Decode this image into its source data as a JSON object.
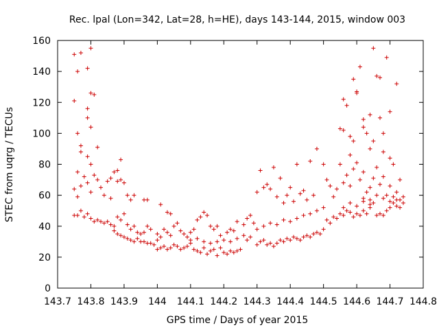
{
  "chart_data": {
    "type": "scatter",
    "title": "Rec. lpal (Lon=342, Lat=28, h=HE), days 143-144, 2015, window 003",
    "xlabel": "GPS time / Days of year 2015",
    "ylabel": "STEC from uqrg / TECUs",
    "xlim": [
      143.7,
      144.8
    ],
    "ylim": [
      0,
      160
    ],
    "x_ticks": [
      143.7,
      143.8,
      143.9,
      144.0,
      144.1,
      144.2,
      144.3,
      144.4,
      144.5,
      144.6,
      144.7,
      144.8
    ],
    "x_tick_labels": [
      "143.7",
      "143.8",
      "143.9",
      "144",
      "144.1",
      "144.2",
      "144.3",
      "144.4",
      "144.5",
      "144.6",
      "144.7",
      "144.8"
    ],
    "y_ticks": [
      0,
      20,
      40,
      60,
      80,
      100,
      120,
      140,
      160
    ],
    "y_tick_labels": [
      "0",
      "20",
      "40",
      "60",
      "80",
      "100",
      "120",
      "140",
      "160"
    ],
    "grid": false,
    "marker": "+",
    "colors": {
      "series": "#cc0000",
      "axis": "#000000",
      "background": "#ffffff"
    },
    "series": [
      {
        "points": [
          [
            143.75,
            151
          ],
          [
            143.75,
            121
          ],
          [
            143.76,
            140
          ],
          [
            143.77,
            152
          ],
          [
            143.79,
            142
          ],
          [
            143.8,
            155
          ],
          [
            143.8,
            126
          ],
          [
            143.81,
            125
          ],
          [
            143.79,
            116
          ],
          [
            143.79,
            110
          ],
          [
            143.8,
            104
          ],
          [
            143.76,
            100
          ],
          [
            143.77,
            92
          ],
          [
            143.77,
            88
          ],
          [
            143.79,
            85
          ],
          [
            143.8,
            80
          ],
          [
            143.82,
            91
          ],
          [
            143.89,
            83
          ],
          [
            143.75,
            64
          ],
          [
            143.76,
            59
          ],
          [
            143.76,
            75
          ],
          [
            143.77,
            66
          ],
          [
            143.78,
            72
          ],
          [
            143.79,
            68
          ],
          [
            143.8,
            62
          ],
          [
            143.81,
            73
          ],
          [
            143.82,
            70
          ],
          [
            143.83,
            65
          ],
          [
            143.84,
            60
          ],
          [
            143.85,
            69
          ],
          [
            143.86,
            58
          ],
          [
            143.87,
            75
          ],
          [
            143.88,
            76
          ],
          [
            143.86,
            71
          ],
          [
            143.88,
            69
          ],
          [
            143.89,
            70
          ],
          [
            143.9,
            68
          ],
          [
            143.91,
            60
          ],
          [
            143.92,
            57
          ],
          [
            143.93,
            60
          ],
          [
            143.75,
            47
          ],
          [
            143.76,
            47
          ],
          [
            143.77,
            50
          ],
          [
            143.78,
            46
          ],
          [
            143.79,
            48
          ],
          [
            143.8,
            45
          ],
          [
            143.81,
            43
          ],
          [
            143.82,
            44
          ],
          [
            143.83,
            43
          ],
          [
            143.84,
            42
          ],
          [
            143.85,
            43
          ],
          [
            143.86,
            41
          ],
          [
            143.87,
            40
          ],
          [
            143.88,
            46
          ],
          [
            143.89,
            44
          ],
          [
            143.9,
            48
          ],
          [
            143.91,
            41
          ],
          [
            143.92,
            38
          ],
          [
            143.93,
            40
          ],
          [
            143.94,
            36
          ],
          [
            143.95,
            35
          ],
          [
            143.96,
            36
          ],
          [
            143.97,
            40
          ],
          [
            143.98,
            38
          ],
          [
            143.96,
            57
          ],
          [
            143.97,
            57
          ],
          [
            143.87,
            37
          ],
          [
            143.88,
            35
          ],
          [
            143.89,
            34
          ],
          [
            143.9,
            33
          ],
          [
            143.91,
            32
          ],
          [
            143.92,
            31
          ],
          [
            143.93,
            30
          ],
          [
            143.94,
            32
          ],
          [
            143.95,
            30
          ],
          [
            143.96,
            30
          ],
          [
            143.97,
            29
          ],
          [
            143.98,
            29
          ],
          [
            143.99,
            28
          ],
          [
            144.0,
            31
          ],
          [
            144.01,
            54
          ],
          [
            144.03,
            49
          ],
          [
            144.04,
            48
          ],
          [
            144.0,
            35
          ],
          [
            144.01,
            33
          ],
          [
            144.02,
            38
          ],
          [
            144.03,
            36
          ],
          [
            144.04,
            34
          ],
          [
            144.05,
            40
          ],
          [
            144.06,
            42
          ],
          [
            144.07,
            37
          ],
          [
            144.08,
            35
          ],
          [
            144.09,
            33
          ],
          [
            144.1,
            36
          ],
          [
            144.11,
            38
          ],
          [
            144.12,
            44
          ],
          [
            144.13,
            46
          ],
          [
            144.14,
            49
          ],
          [
            144.15,
            47
          ],
          [
            144.16,
            40
          ],
          [
            144.17,
            38
          ],
          [
            144.0,
            25
          ],
          [
            144.01,
            26
          ],
          [
            144.02,
            27
          ],
          [
            144.03,
            25
          ],
          [
            144.04,
            26
          ],
          [
            144.05,
            28
          ],
          [
            144.06,
            27
          ],
          [
            144.07,
            25
          ],
          [
            144.08,
            26
          ],
          [
            144.09,
            27
          ],
          [
            144.1,
            29
          ],
          [
            144.11,
            25
          ],
          [
            144.12,
            24
          ],
          [
            144.13,
            23
          ],
          [
            144.14,
            26
          ],
          [
            144.15,
            22
          ],
          [
            144.16,
            24
          ],
          [
            144.17,
            25
          ],
          [
            144.18,
            21
          ],
          [
            144.19,
            26
          ],
          [
            144.2,
            23
          ],
          [
            144.21,
            22
          ],
          [
            144.22,
            24
          ],
          [
            144.23,
            23
          ],
          [
            144.24,
            24
          ],
          [
            144.25,
            25
          ],
          [
            144.1,
            31
          ],
          [
            144.12,
            32
          ],
          [
            144.14,
            30
          ],
          [
            144.16,
            29
          ],
          [
            144.18,
            30
          ],
          [
            144.2,
            31
          ],
          [
            144.22,
            30
          ],
          [
            144.24,
            32
          ],
          [
            144.26,
            34
          ],
          [
            144.27,
            31
          ],
          [
            144.28,
            33
          ],
          [
            144.18,
            40
          ],
          [
            144.19,
            34
          ],
          [
            144.21,
            36
          ],
          [
            144.22,
            38
          ],
          [
            144.23,
            37
          ],
          [
            144.24,
            43
          ],
          [
            144.26,
            41
          ],
          [
            144.27,
            45
          ],
          [
            144.28,
            47
          ],
          [
            144.29,
            42
          ],
          [
            144.3,
            62
          ],
          [
            144.31,
            76
          ],
          [
            144.32,
            65
          ],
          [
            144.33,
            67
          ],
          [
            144.34,
            64
          ],
          [
            144.35,
            78
          ],
          [
            144.36,
            59
          ],
          [
            144.37,
            71
          ],
          [
            144.38,
            55
          ],
          [
            144.39,
            60
          ],
          [
            144.4,
            65
          ],
          [
            144.41,
            56
          ],
          [
            144.42,
            80
          ],
          [
            144.43,
            61
          ],
          [
            144.44,
            63
          ],
          [
            144.45,
            57
          ],
          [
            144.46,
            82
          ],
          [
            144.47,
            60
          ],
          [
            144.48,
            90
          ],
          [
            144.3,
            28
          ],
          [
            144.31,
            30
          ],
          [
            144.32,
            31
          ],
          [
            144.33,
            28
          ],
          [
            144.34,
            29
          ],
          [
            144.35,
            27
          ],
          [
            144.36,
            29
          ],
          [
            144.37,
            31
          ],
          [
            144.38,
            30
          ],
          [
            144.39,
            32
          ],
          [
            144.4,
            31
          ],
          [
            144.41,
            33
          ],
          [
            144.42,
            32
          ],
          [
            144.43,
            31
          ],
          [
            144.44,
            33
          ],
          [
            144.45,
            34
          ],
          [
            144.46,
            33
          ],
          [
            144.47,
            35
          ],
          [
            144.48,
            36
          ],
          [
            144.49,
            35
          ],
          [
            144.5,
            38
          ],
          [
            144.3,
            38
          ],
          [
            144.32,
            40
          ],
          [
            144.34,
            42
          ],
          [
            144.36,
            41
          ],
          [
            144.38,
            44
          ],
          [
            144.4,
            43
          ],
          [
            144.42,
            45
          ],
          [
            144.44,
            47
          ],
          [
            144.46,
            48
          ],
          [
            144.48,
            50
          ],
          [
            144.5,
            52
          ],
          [
            144.5,
            80
          ],
          [
            144.51,
            70
          ],
          [
            144.52,
            66
          ],
          [
            144.53,
            59
          ],
          [
            144.54,
            64
          ],
          [
            144.55,
            80
          ],
          [
            144.56,
            68
          ],
          [
            144.57,
            73
          ],
          [
            144.58,
            66
          ],
          [
            144.51,
            44
          ],
          [
            144.52,
            42
          ],
          [
            144.53,
            46
          ],
          [
            144.54,
            45
          ],
          [
            144.55,
            48
          ],
          [
            144.56,
            47
          ],
          [
            144.57,
            50
          ],
          [
            144.58,
            49
          ],
          [
            144.59,
            46
          ],
          [
            144.6,
            48
          ],
          [
            144.61,
            47
          ],
          [
            144.62,
            50
          ],
          [
            144.63,
            48
          ],
          [
            144.64,
            52
          ],
          [
            144.65,
            55
          ],
          [
            144.66,
            47
          ],
          [
            144.67,
            48
          ],
          [
            144.68,
            47
          ],
          [
            144.69,
            50
          ],
          [
            144.7,
            52
          ],
          [
            144.71,
            55
          ],
          [
            144.72,
            53
          ],
          [
            144.73,
            52
          ],
          [
            144.55,
            103
          ],
          [
            144.56,
            102
          ],
          [
            144.56,
            122
          ],
          [
            144.57,
            118
          ],
          [
            144.58,
            98
          ],
          [
            144.58,
            86
          ],
          [
            144.59,
            95
          ],
          [
            144.59,
            135
          ],
          [
            144.6,
            126
          ],
          [
            144.6,
            127
          ],
          [
            144.61,
            143
          ],
          [
            144.62,
            109
          ],
          [
            144.62,
            104
          ],
          [
            144.63,
            100
          ],
          [
            144.64,
            112
          ],
          [
            144.64,
            90
          ],
          [
            144.65,
            95
          ],
          [
            144.65,
            155
          ],
          [
            144.66,
            137
          ],
          [
            144.67,
            136
          ],
          [
            144.67,
            110
          ],
          [
            144.68,
            100
          ],
          [
            144.68,
            88
          ],
          [
            144.69,
            149
          ],
          [
            144.7,
            114
          ],
          [
            144.7,
            84
          ],
          [
            144.71,
            80
          ],
          [
            144.72,
            132
          ],
          [
            144.73,
            70
          ],
          [
            144.59,
            77
          ],
          [
            144.6,
            81
          ],
          [
            144.61,
            70
          ],
          [
            144.62,
            75
          ],
          [
            144.63,
            62
          ],
          [
            144.64,
            65
          ],
          [
            144.65,
            71
          ],
          [
            144.66,
            78
          ],
          [
            144.67,
            67
          ],
          [
            144.68,
            72
          ],
          [
            144.69,
            60
          ],
          [
            144.7,
            66
          ],
          [
            144.71,
            59
          ],
          [
            144.72,
            62
          ],
          [
            144.73,
            57
          ],
          [
            144.74,
            55
          ],
          [
            144.62,
            58
          ],
          [
            144.64,
            57
          ],
          [
            144.66,
            60
          ],
          [
            144.68,
            58
          ],
          [
            144.7,
            56
          ],
          [
            144.72,
            57
          ],
          [
            144.74,
            59
          ],
          [
            144.56,
            52
          ],
          [
            144.58,
            55
          ],
          [
            144.6,
            53
          ],
          [
            144.62,
            56
          ],
          [
            144.64,
            54
          ]
        ]
      }
    ]
  }
}
